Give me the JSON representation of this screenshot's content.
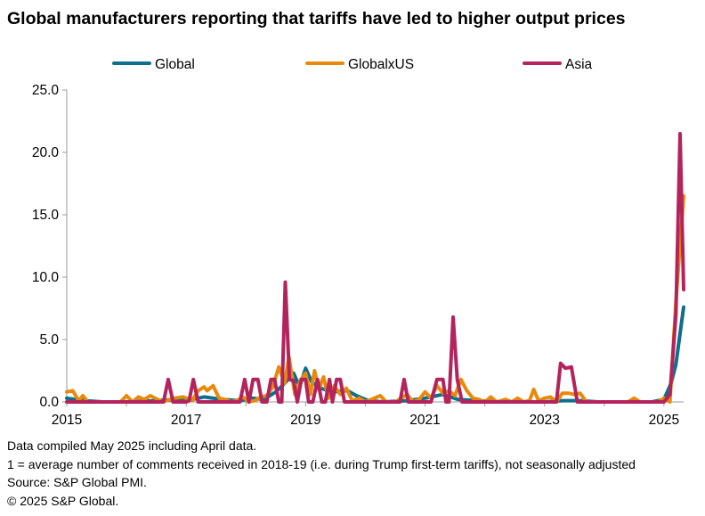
{
  "title": "Global manufacturers reporting that tariffs have led to higher output prices",
  "footnotes": [
    "Data compiled May 2025 including April data.",
    "1 = average number of comments received in 2018-19 (i.e. during Trump first-term tariffs), not seasonally adjusted",
    "Source: S&P Global PMI.",
    "© 2025 S&P Global."
  ],
  "chart_data": {
    "type": "line",
    "title": "Global manufacturers reporting that tariffs have led to higher output prices",
    "xlabel": "",
    "ylabel": "",
    "xlim": [
      2015.0,
      2025.33
    ],
    "ylim": [
      0,
      25
    ],
    "x_ticks": [
      2015,
      2017,
      2019,
      2021,
      2023,
      2025
    ],
    "y_ticks": [
      0,
      5,
      10,
      15,
      20,
      25
    ],
    "y_tick_labels": [
      "0.0",
      "5.0",
      "10.0",
      "15.0",
      "20.0",
      "25.0"
    ],
    "grid": false,
    "legend_position": "top",
    "series": [
      {
        "name": "Global",
        "color": "#0e6e8c",
        "points": [
          [
            2015.0,
            0.3
          ],
          [
            2015.3,
            0.1
          ],
          [
            2015.6,
            0
          ],
          [
            2016.0,
            0
          ],
          [
            2016.5,
            0.1
          ],
          [
            2016.8,
            0.2
          ],
          [
            2017.0,
            0.1
          ],
          [
            2017.3,
            0.4
          ],
          [
            2017.6,
            0.2
          ],
          [
            2017.9,
            0.1
          ],
          [
            2018.1,
            0.3
          ],
          [
            2018.3,
            0.2
          ],
          [
            2018.5,
            0.8
          ],
          [
            2018.65,
            1.5
          ],
          [
            2018.8,
            2.3
          ],
          [
            2018.9,
            1.2
          ],
          [
            2019.0,
            2.7
          ],
          [
            2019.1,
            1.6
          ],
          [
            2019.25,
            1.1
          ],
          [
            2019.45,
            0.8
          ],
          [
            2019.7,
            0.9
          ],
          [
            2019.85,
            0.5
          ],
          [
            2020.05,
            0.1
          ],
          [
            2020.3,
            0
          ],
          [
            2020.7,
            0.1
          ],
          [
            2021.0,
            0.3
          ],
          [
            2021.3,
            0.6
          ],
          [
            2021.55,
            0.2
          ],
          [
            2021.9,
            0.1
          ],
          [
            2022.3,
            0
          ],
          [
            2022.7,
            0
          ],
          [
            2023.0,
            0
          ],
          [
            2023.3,
            0.1
          ],
          [
            2023.6,
            0.1
          ],
          [
            2023.9,
            0
          ],
          [
            2024.3,
            0
          ],
          [
            2024.8,
            0
          ],
          [
            2025.0,
            0.2
          ],
          [
            2025.12,
            1.5
          ],
          [
            2025.2,
            3.0
          ],
          [
            2025.33,
            7.6
          ]
        ]
      },
      {
        "name": "GlobalxUS",
        "color": "#e8890c",
        "points": [
          [
            2015.0,
            0.8
          ],
          [
            2015.1,
            0.9
          ],
          [
            2015.2,
            0.1
          ],
          [
            2015.27,
            0.5
          ],
          [
            2015.35,
            0
          ],
          [
            2015.9,
            0
          ],
          [
            2016.0,
            0.5
          ],
          [
            2016.1,
            0
          ],
          [
            2016.2,
            0.4
          ],
          [
            2016.3,
            0.2
          ],
          [
            2016.4,
            0.5
          ],
          [
            2016.6,
            0
          ],
          [
            2016.8,
            0.3
          ],
          [
            2016.95,
            0.4
          ],
          [
            2017.1,
            0.1
          ],
          [
            2017.2,
            0.9
          ],
          [
            2017.3,
            1.2
          ],
          [
            2017.35,
            0.9
          ],
          [
            2017.45,
            1.3
          ],
          [
            2017.55,
            0.3
          ],
          [
            2017.65,
            0.2
          ],
          [
            2017.75,
            0
          ],
          [
            2017.85,
            0.1
          ],
          [
            2017.95,
            0.4
          ],
          [
            2018.05,
            0
          ],
          [
            2018.15,
            0.1
          ],
          [
            2018.25,
            0.4
          ],
          [
            2018.35,
            0.5
          ],
          [
            2018.45,
            1.2
          ],
          [
            2018.55,
            2.8
          ],
          [
            2018.65,
            1.5
          ],
          [
            2018.72,
            3.6
          ],
          [
            2018.82,
            0.6
          ],
          [
            2018.92,
            1.8
          ],
          [
            2019.0,
            2.3
          ],
          [
            2019.08,
            0.6
          ],
          [
            2019.15,
            2.5
          ],
          [
            2019.22,
            1.0
          ],
          [
            2019.3,
            2.0
          ],
          [
            2019.38,
            0.3
          ],
          [
            2019.48,
            1.3
          ],
          [
            2019.58,
            0.6
          ],
          [
            2019.68,
            1.1
          ],
          [
            2019.78,
            0.1
          ],
          [
            2019.9,
            0.3
          ],
          [
            2020.0,
            0
          ],
          [
            2020.15,
            0.3
          ],
          [
            2020.25,
            0.5
          ],
          [
            2020.35,
            0
          ],
          [
            2020.5,
            0
          ],
          [
            2020.6,
            0.3
          ],
          [
            2020.7,
            0.6
          ],
          [
            2020.8,
            0
          ],
          [
            2020.9,
            0.2
          ],
          [
            2021.0,
            0.8
          ],
          [
            2021.1,
            0.3
          ],
          [
            2021.2,
            1.3
          ],
          [
            2021.3,
            0.7
          ],
          [
            2021.4,
            0.9
          ],
          [
            2021.5,
            0.5
          ],
          [
            2021.6,
            1.8
          ],
          [
            2021.7,
            0.9
          ],
          [
            2021.8,
            0.3
          ],
          [
            2021.9,
            0.2
          ],
          [
            2022.0,
            0
          ],
          [
            2022.1,
            0.4
          ],
          [
            2022.2,
            0
          ],
          [
            2022.35,
            0.2
          ],
          [
            2022.45,
            0
          ],
          [
            2022.55,
            0.3
          ],
          [
            2022.65,
            0
          ],
          [
            2022.75,
            0.1
          ],
          [
            2022.82,
            1.0
          ],
          [
            2022.9,
            0.1
          ],
          [
            2023.0,
            0.3
          ],
          [
            2023.1,
            0.4
          ],
          [
            2023.2,
            0
          ],
          [
            2023.3,
            0.7
          ],
          [
            2023.4,
            0.7
          ],
          [
            2023.5,
            0.6
          ],
          [
            2023.6,
            0.7
          ],
          [
            2023.7,
            0
          ],
          [
            2023.9,
            0
          ],
          [
            2024.4,
            0
          ],
          [
            2024.5,
            0.3
          ],
          [
            2024.6,
            0
          ],
          [
            2024.9,
            0
          ],
          [
            2025.0,
            0.3
          ],
          [
            2025.1,
            0
          ],
          [
            2025.2,
            8.0
          ],
          [
            2025.33,
            16.5
          ]
        ]
      },
      {
        "name": "Asia",
        "color": "#b3245c",
        "points": [
          [
            2015.0,
            0
          ],
          [
            2016.0,
            0
          ],
          [
            2016.5,
            0
          ],
          [
            2016.62,
            0
          ],
          [
            2016.7,
            1.8
          ],
          [
            2016.78,
            0
          ],
          [
            2017.0,
            0
          ],
          [
            2017.05,
            0.1
          ],
          [
            2017.12,
            1.8
          ],
          [
            2017.2,
            0
          ],
          [
            2017.6,
            0
          ],
          [
            2017.9,
            0
          ],
          [
            2017.98,
            1.8
          ],
          [
            2018.05,
            0
          ],
          [
            2018.12,
            1.8
          ],
          [
            2018.2,
            1.8
          ],
          [
            2018.27,
            0
          ],
          [
            2018.35,
            0
          ],
          [
            2018.42,
            1.8
          ],
          [
            2018.48,
            1.8
          ],
          [
            2018.55,
            0
          ],
          [
            2018.6,
            0
          ],
          [
            2018.66,
            9.6
          ],
          [
            2018.73,
            1.8
          ],
          [
            2018.8,
            1.7
          ],
          [
            2018.86,
            0
          ],
          [
            2018.93,
            1.8
          ],
          [
            2019.0,
            1.8
          ],
          [
            2019.05,
            0
          ],
          [
            2019.12,
            0
          ],
          [
            2019.2,
            1.8
          ],
          [
            2019.27,
            0
          ],
          [
            2019.33,
            0
          ],
          [
            2019.4,
            1.8
          ],
          [
            2019.45,
            0
          ],
          [
            2019.52,
            1.8
          ],
          [
            2019.58,
            1.8
          ],
          [
            2019.65,
            0
          ],
          [
            2019.7,
            0
          ],
          [
            2020.5,
            0
          ],
          [
            2020.58,
            0
          ],
          [
            2020.65,
            1.8
          ],
          [
            2020.72,
            0
          ],
          [
            2021.0,
            0
          ],
          [
            2021.1,
            0
          ],
          [
            2021.2,
            1.8
          ],
          [
            2021.3,
            1.8
          ],
          [
            2021.35,
            0
          ],
          [
            2021.4,
            0
          ],
          [
            2021.47,
            6.8
          ],
          [
            2021.54,
            1.8
          ],
          [
            2021.62,
            0
          ],
          [
            2022.0,
            0
          ],
          [
            2023.0,
            0
          ],
          [
            2023.2,
            0
          ],
          [
            2023.27,
            3.1
          ],
          [
            2023.35,
            2.7
          ],
          [
            2023.45,
            2.8
          ],
          [
            2023.55,
            0
          ],
          [
            2023.6,
            0
          ],
          [
            2024.0,
            0
          ],
          [
            2024.5,
            0
          ],
          [
            2024.9,
            0
          ],
          [
            2025.0,
            0
          ],
          [
            2025.1,
            0.6
          ],
          [
            2025.2,
            7.0
          ],
          [
            2025.27,
            21.5
          ],
          [
            2025.33,
            9.0
          ]
        ]
      }
    ]
  }
}
